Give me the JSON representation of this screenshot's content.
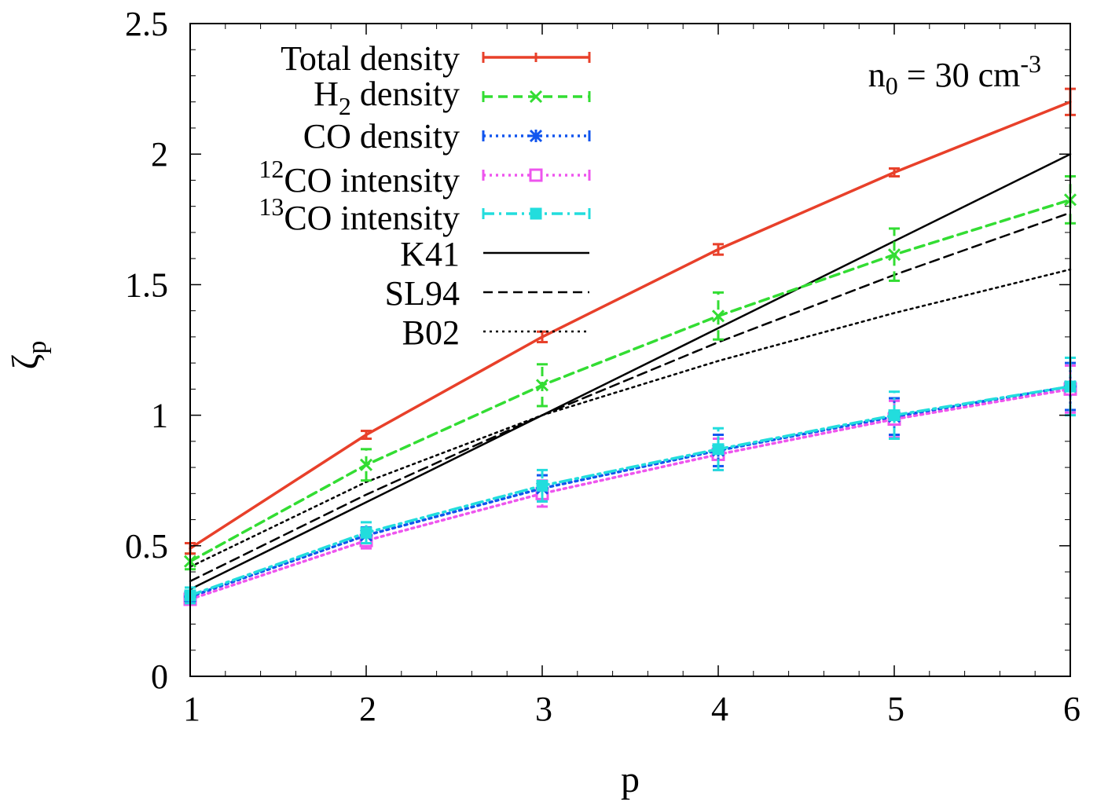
{
  "chart_data": {
    "type": "line",
    "title": "",
    "xlabel": "p",
    "ylabel": "ζ",
    "ylabel_sub": "p",
    "xlim": [
      1,
      6
    ],
    "ylim": [
      0,
      2.5
    ],
    "xticks": [
      1,
      2,
      3,
      4,
      5,
      6
    ],
    "xtick_labels": [
      "1",
      "2",
      "3",
      "4",
      "5",
      "6"
    ],
    "yticks": [
      0,
      0.5,
      1,
      1.5,
      2,
      2.5
    ],
    "ytick_labels": [
      "0",
      "0.5",
      "1",
      "1.5",
      "2",
      "2.5"
    ],
    "grid": false,
    "legend_position": "top-left",
    "annotation": {
      "base": "n",
      "sub": "0",
      "mid": " = 30 cm",
      "sup": "-3"
    },
    "series": [
      {
        "key": "total",
        "name": "Total density",
        "color": "#e8402a",
        "dash": "solid",
        "marker": "tick",
        "x": [
          1,
          2,
          3,
          4,
          5,
          6
        ],
        "values": [
          0.49,
          0.925,
          1.3,
          1.635,
          1.93,
          2.2
        ],
        "errors": [
          0.02,
          0.015,
          0.02,
          0.02,
          0.015,
          0.05
        ]
      },
      {
        "key": "h2",
        "name": "H",
        "name_sub": "2",
        "name_rest": " density",
        "color": "#33dd33",
        "dash": "dashed",
        "marker": "x",
        "x": [
          1,
          2,
          3,
          4,
          5,
          6
        ],
        "values": [
          0.44,
          0.81,
          1.115,
          1.38,
          1.615,
          1.825
        ],
        "errors": [
          0.03,
          0.06,
          0.08,
          0.09,
          0.1,
          0.09
        ]
      },
      {
        "key": "co",
        "name": "CO density",
        "color": "#1155ee",
        "dash": "dotted",
        "marker": "star",
        "x": [
          1,
          2,
          3,
          4,
          5,
          6
        ],
        "values": [
          0.305,
          0.54,
          0.72,
          0.865,
          0.995,
          1.11
        ],
        "errors": [
          0.02,
          0.03,
          0.05,
          0.06,
          0.07,
          0.09
        ]
      },
      {
        "key": "co12",
        "name_sup": "12",
        "name": "CO intensity",
        "color": "#ee55ee",
        "dash": "dotted",
        "marker": "square",
        "x": [
          1,
          2,
          3,
          4,
          5,
          6
        ],
        "values": [
          0.295,
          0.52,
          0.7,
          0.85,
          0.985,
          1.1
        ],
        "errors": [
          0.02,
          0.03,
          0.05,
          0.06,
          0.07,
          0.09
        ]
      },
      {
        "key": "co13",
        "name_sup": "13",
        "name": "CO intensity",
        "color": "#22dddd",
        "dash": "dashdot",
        "marker": "filledsquare",
        "x": [
          1,
          2,
          3,
          4,
          5,
          6
        ],
        "values": [
          0.31,
          0.55,
          0.73,
          0.87,
          1.0,
          1.11
        ],
        "errors": [
          0.03,
          0.04,
          0.06,
          0.08,
          0.09,
          0.11
        ]
      },
      {
        "key": "k41",
        "name": "K41",
        "color": "#000000",
        "dash": "solid",
        "marker": "none",
        "x": [
          1,
          2,
          3,
          4,
          5,
          6
        ],
        "values": [
          0.3333,
          0.6667,
          1.0,
          1.3333,
          1.6667,
          2.0
        ]
      },
      {
        "key": "sl94",
        "name": "SL94",
        "color": "#000000",
        "dash": "dashed",
        "marker": "none",
        "x": [
          1,
          2,
          3,
          4,
          5,
          6
        ],
        "values": [
          0.3642,
          0.6959,
          1.0,
          1.2795,
          1.5372,
          1.7755
        ]
      },
      {
        "key": "b02",
        "name": "B02",
        "color": "#000000",
        "dash": "dotted",
        "marker": "none",
        "x": [
          1,
          2,
          3,
          4,
          5,
          6
        ],
        "values": [
          0.4195,
          0.7444,
          1.0,
          1.2079,
          1.3913,
          1.5583
        ]
      }
    ]
  }
}
